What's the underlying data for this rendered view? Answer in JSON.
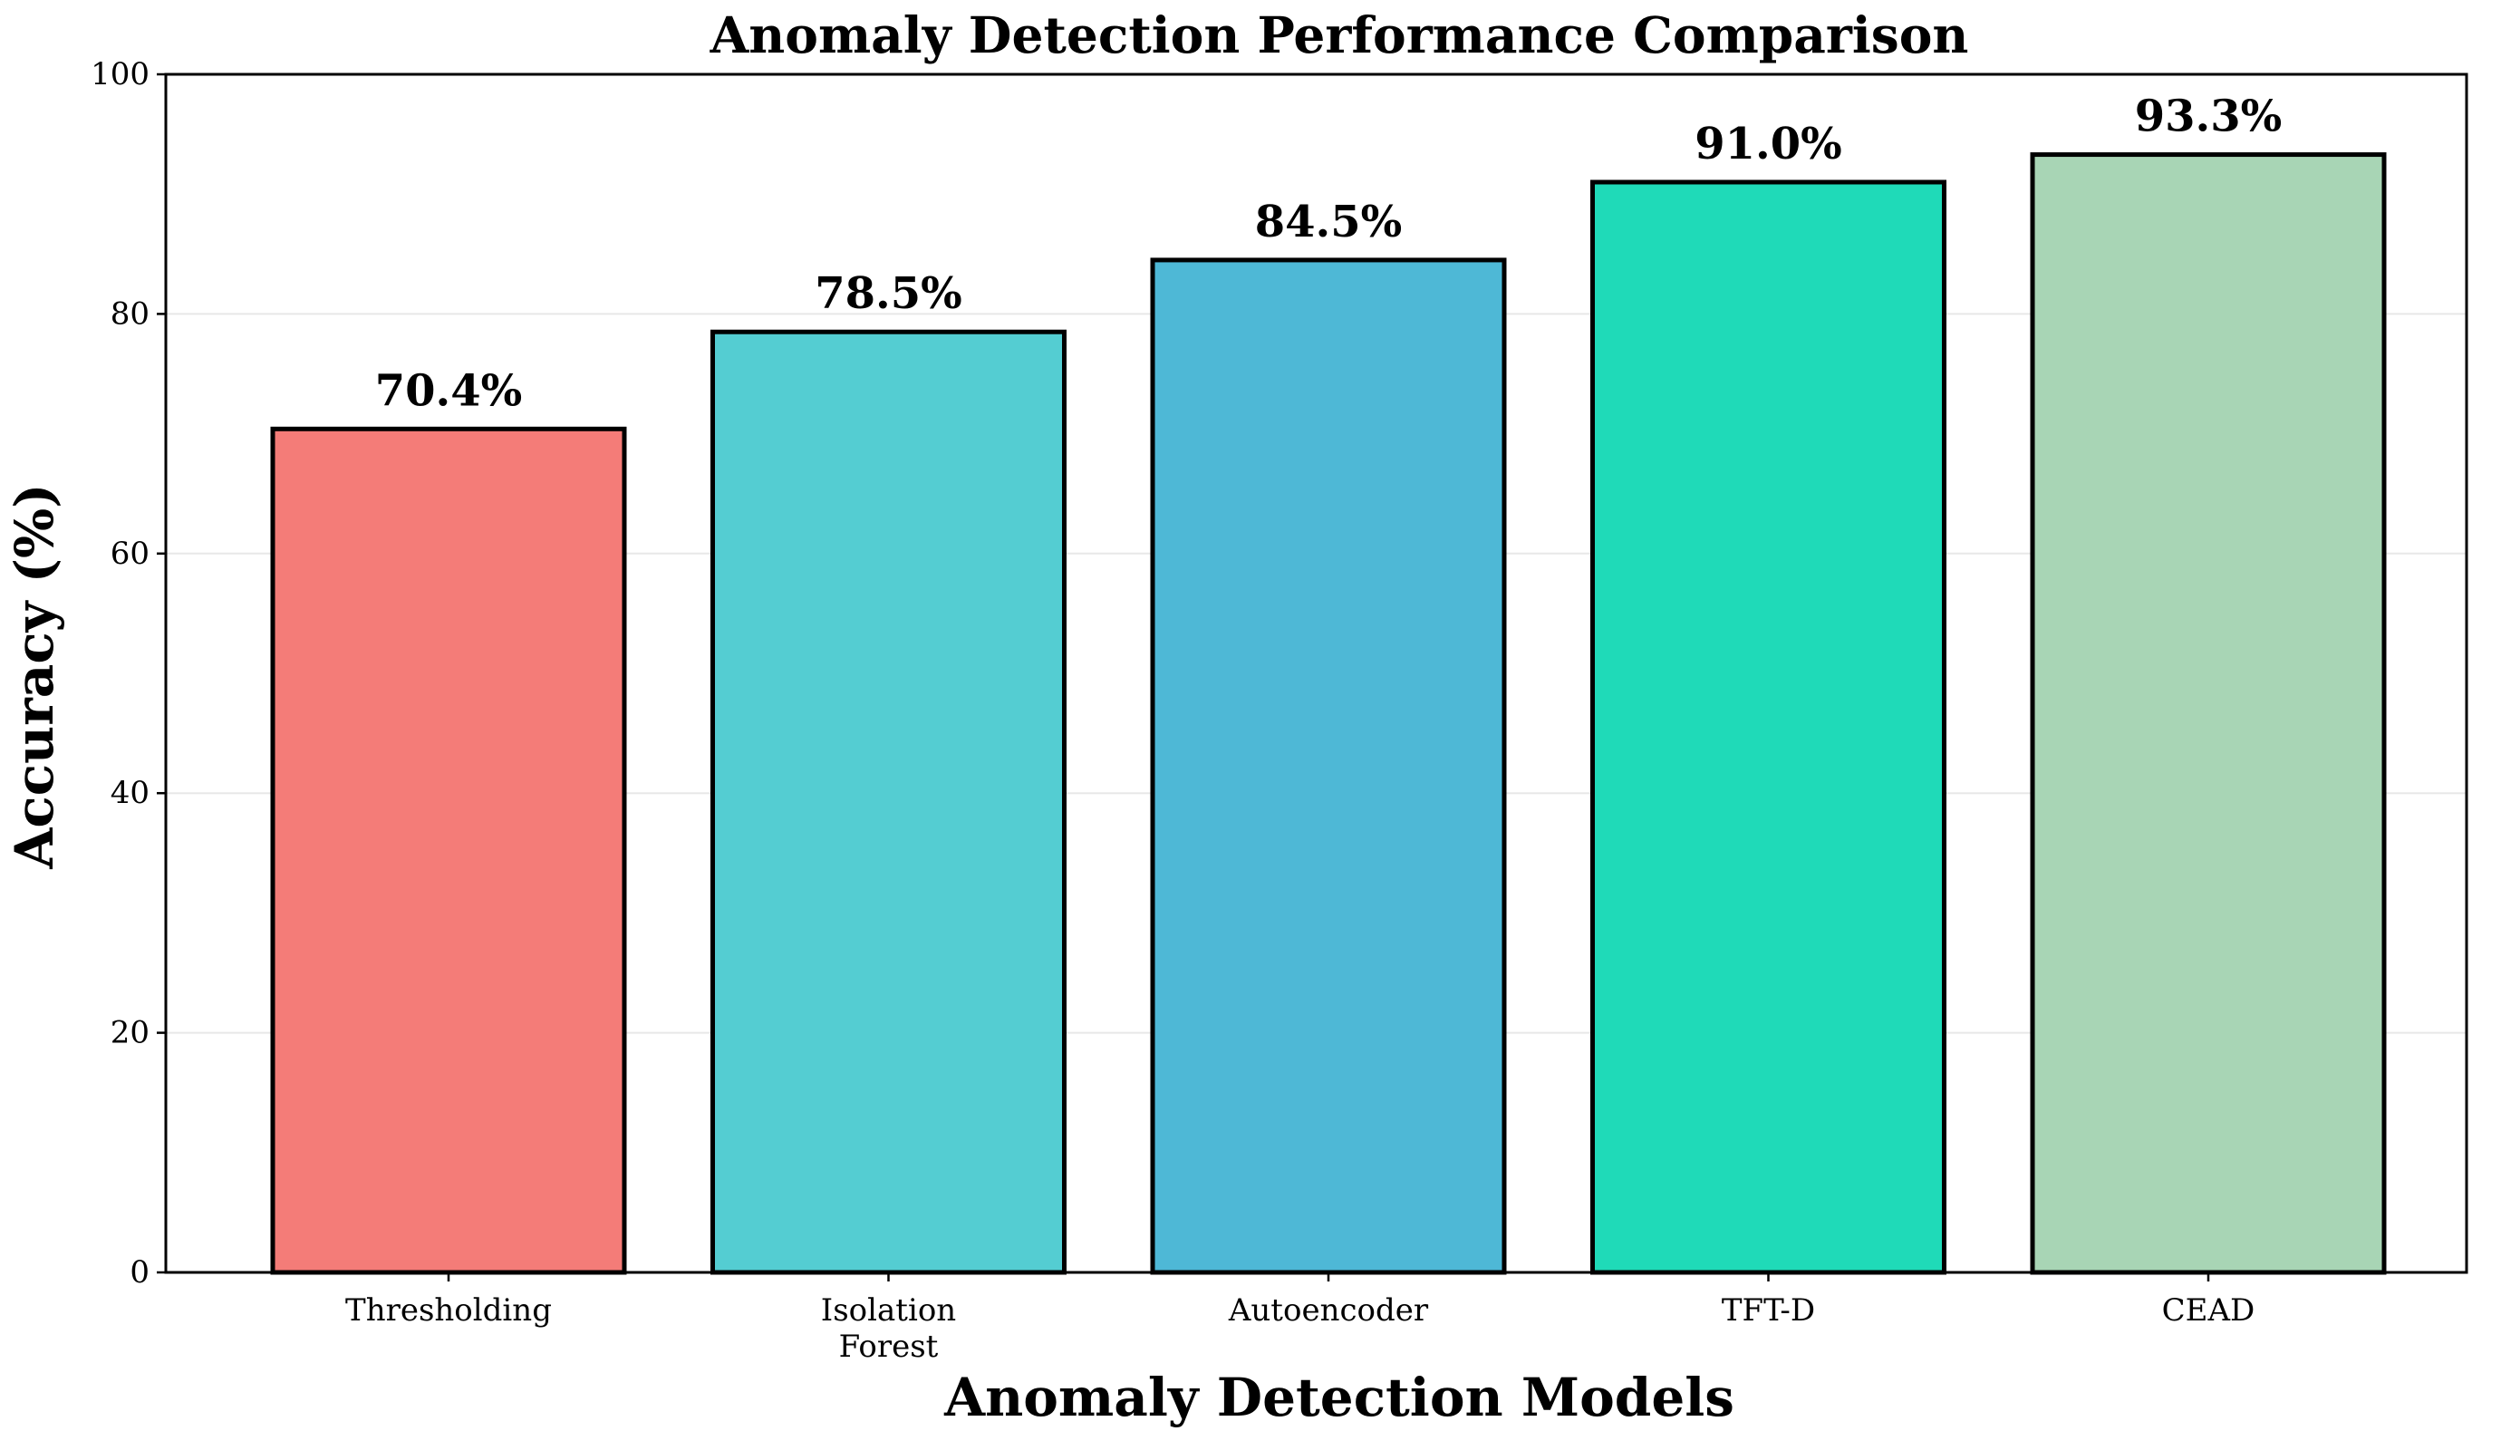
{
  "chart_data": {
    "type": "bar",
    "title": "Anomaly Detection Performance Comparison",
    "xlabel": "Anomaly Detection Models",
    "ylabel": "Accuracy (%)",
    "categories": [
      "Thresholding",
      "Isolation\nForest",
      "Autoencoder",
      "TFT-D",
      "CEAD"
    ],
    "values": [
      70.4,
      78.5,
      84.5,
      91.0,
      93.3
    ],
    "value_labels": [
      "70.4%",
      "78.5%",
      "84.5%",
      "91.0%",
      "93.3%"
    ],
    "colors": [
      "#F47C78",
      "#54CDD2",
      "#4EB8D6",
      "#1FDAB8",
      "#A8D5B5"
    ],
    "ylim": [
      0,
      100
    ],
    "yticks": [
      0,
      20,
      40,
      60,
      80,
      100
    ],
    "grid": "y"
  }
}
